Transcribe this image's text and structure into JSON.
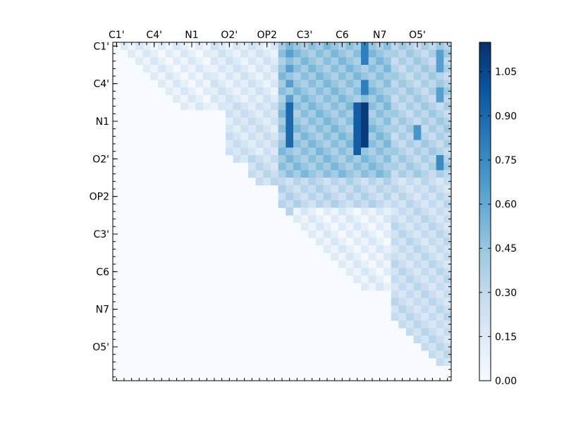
{
  "chart_data": {
    "type": "heatmap",
    "n": 45,
    "x_tick_labels": [
      "C1'",
      "C4'",
      "N1",
      "O2'",
      "OP2",
      "C3'",
      "C6",
      "N7",
      "O5'"
    ],
    "y_tick_labels": [
      "C1'",
      "C4'",
      "N1",
      "O2'",
      "OP2",
      "C3'",
      "C6",
      "N7",
      "O5'"
    ],
    "label_tick_indices": [
      0,
      5,
      10,
      15,
      20,
      25,
      30,
      35,
      40
    ],
    "colormap": "Blues",
    "colorbar": {
      "range": [
        0.0,
        1.15
      ],
      "tick_values": [
        0.0,
        0.15,
        0.3,
        0.45,
        0.6,
        0.75,
        0.9,
        1.05
      ],
      "tick_labels": [
        "0.00",
        "0.15",
        "0.30",
        "0.45",
        "0.60",
        "0.75",
        "0.90",
        "1.05"
      ]
    },
    "colors": {
      "low": "#f7fbff",
      "high": "#08306b"
    },
    "triangle": "upper",
    "blocks": [
      {
        "rows": [
          0,
          8
        ],
        "cols": [
          1,
          12
        ],
        "value": 0.1
      },
      {
        "rows": [
          0,
          8
        ],
        "cols": [
          13,
          21
        ],
        "value": 0.15
      },
      {
        "rows": [
          0,
          18
        ],
        "cols": [
          22,
          36
        ],
        "value": 0.45
      },
      {
        "rows": [
          0,
          18
        ],
        "cols": [
          37,
          44
        ],
        "value": 0.35
      },
      {
        "rows": [
          8,
          15
        ],
        "cols": [
          15,
          21
        ],
        "value": 0.2
      },
      {
        "rows": [
          15,
          18
        ],
        "cols": [
          18,
          21
        ],
        "value": 0.25
      },
      {
        "rows": [
          18,
          22
        ],
        "cols": [
          22,
          36
        ],
        "value": 0.3
      },
      {
        "rows": [
          18,
          28
        ],
        "cols": [
          37,
          44
        ],
        "value": 0.25
      },
      {
        "rows": [
          22,
          32
        ],
        "cols": [
          24,
          36
        ],
        "value": 0.1
      },
      {
        "rows": [
          28,
          42
        ],
        "cols": [
          37,
          44
        ],
        "value": 0.25
      }
    ],
    "highlights": [
      {
        "cells": [
          [
            1,
            23
          ],
          [
            3,
            23
          ],
          [
            5,
            23
          ],
          [
            7,
            23
          ]
        ],
        "value": 0.65
      },
      {
        "cells": [
          [
            8,
            23
          ],
          [
            9,
            23
          ],
          [
            10,
            23
          ],
          [
            11,
            23
          ],
          [
            12,
            23
          ],
          [
            13,
            23
          ]
        ],
        "value": 0.9
      },
      {
        "cells": [
          [
            0,
            33
          ],
          [
            1,
            33
          ],
          [
            2,
            33
          ],
          [
            5,
            33
          ],
          [
            6,
            33
          ]
        ],
        "value": 0.8
      },
      {
        "cells": [
          [
            8,
            32
          ],
          [
            9,
            32
          ],
          [
            10,
            32
          ],
          [
            11,
            32
          ],
          [
            12,
            32
          ],
          [
            13,
            32
          ],
          [
            14,
            32
          ]
        ],
        "value": 0.95
      },
      {
        "cells": [
          [
            8,
            33
          ],
          [
            9,
            33
          ],
          [
            10,
            33
          ],
          [
            11,
            33
          ],
          [
            12,
            33
          ],
          [
            13,
            33
          ]
        ],
        "value": 1.1
      },
      {
        "cells": [
          [
            1,
            43
          ],
          [
            2,
            43
          ],
          [
            3,
            43
          ],
          [
            6,
            43
          ],
          [
            7,
            43
          ]
        ],
        "value": 0.65
      },
      {
        "cells": [
          [
            15,
            43
          ],
          [
            16,
            43
          ]
        ],
        "value": 0.75
      },
      {
        "cells": [
          [
            11,
            40
          ],
          [
            12,
            40
          ]
        ],
        "value": 0.7
      }
    ]
  }
}
